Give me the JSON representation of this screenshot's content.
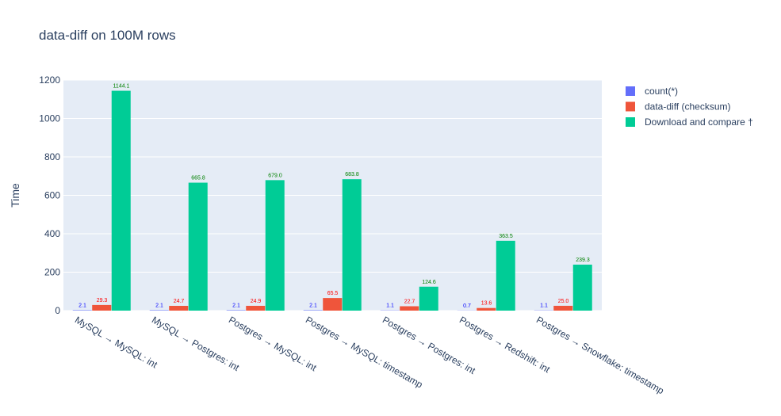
{
  "chart_data": {
    "type": "bar",
    "title": "data-diff on 100M rows",
    "xlabel": "",
    "ylabel": "Time",
    "ylim": [
      0,
      1200
    ],
    "yticks": [
      0,
      200,
      400,
      600,
      800,
      1000,
      1200
    ],
    "grid": true,
    "legend_position": "top-right",
    "categories": [
      "MySQL → MySQL: int",
      "MySQL → Postgres: int",
      "Postgres → MySQL: int",
      "Postgres → MySQL: timestamp",
      "Postgres → Postgres: int",
      "Postgres → Redshift: int",
      "Postgres → Snowflake: timestamp"
    ],
    "series": [
      {
        "name": "count(*)",
        "color": "#636efa",
        "label_color": "#0000ff",
        "values": [
          2.1,
          2.1,
          2.1,
          2.1,
          1.1,
          0.7,
          1.1
        ],
        "labels": [
          "2.1",
          "2.1",
          "2.1",
          "2.1",
          "1.1",
          "0.7",
          "1.1"
        ]
      },
      {
        "name": "data-diff (checksum)",
        "color": "#ef553b",
        "label_color": "#ff0000",
        "values": [
          29.3,
          24.7,
          24.9,
          65.5,
          22.7,
          13.6,
          25.0
        ],
        "labels": [
          "29.3",
          "24.7",
          "24.9",
          "65.5",
          "22.7",
          "13.6",
          "25.0"
        ]
      },
      {
        "name": "Download and compare †",
        "color": "#00cc96",
        "label_color": "#008000",
        "values": [
          1144.1,
          665.8,
          679.0,
          683.8,
          124.6,
          363.5,
          239.3
        ],
        "labels": [
          "1144.1",
          "665.8",
          "679.0",
          "683.8",
          "124.6",
          "363.5",
          "239.3"
        ]
      }
    ],
    "colors": {
      "plot_bg": "#e5ecf6",
      "grid": "#ffffff",
      "text": "#2a3f5f"
    }
  }
}
